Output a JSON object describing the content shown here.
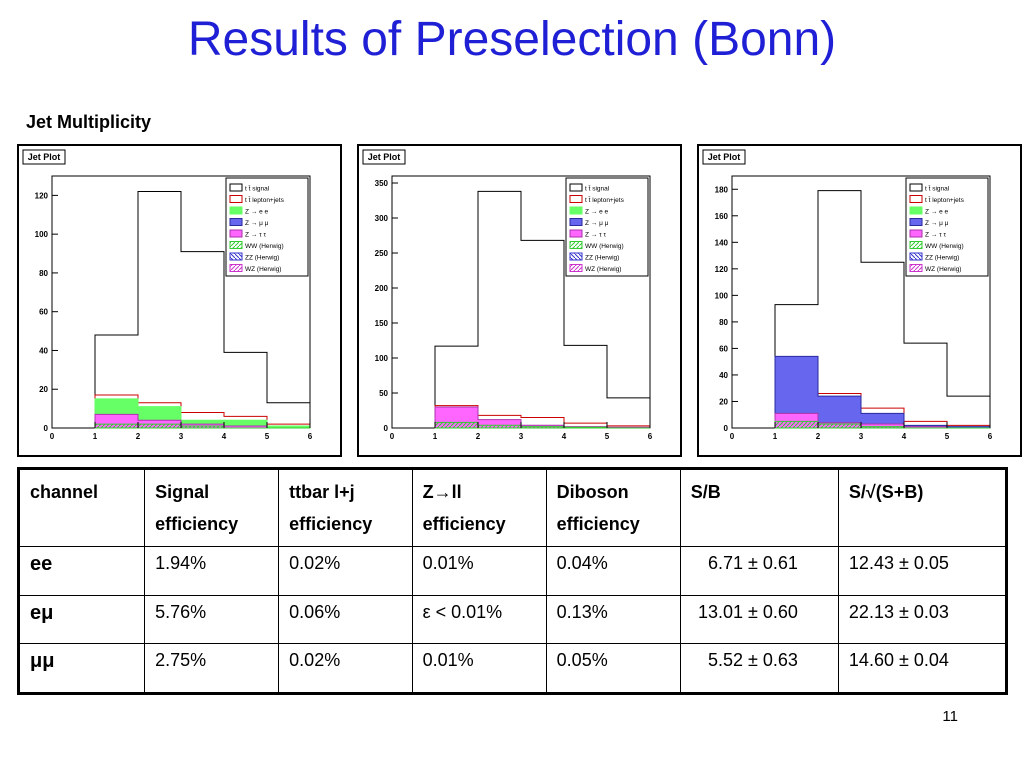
{
  "title": "Results of Preselection (Bonn)",
  "subtitle": "Jet Multiplicity",
  "page_number": "11",
  "colors": {
    "title": "#1f1fd6",
    "signal": "#000000",
    "lepton_jets": "#cc0000",
    "z_ee": "#66ff66",
    "z_mumu": "#6666ee",
    "z_tautau": "#ff66ff",
    "ww": "#33cc33",
    "zz": "#3333cc",
    "wz": "#cc33cc"
  },
  "chart_data": [
    {
      "type": "bar",
      "title": "Jet Plot",
      "x_edges": [
        1,
        2,
        3,
        4,
        5,
        6
      ],
      "xlim": [
        0,
        6
      ],
      "ylim": [
        0,
        130
      ],
      "yticks": [
        0,
        20,
        40,
        60,
        80,
        100,
        120
      ],
      "xticks": [
        0,
        1,
        2,
        3,
        4,
        5,
        6
      ],
      "legend_position": "top-right",
      "series": [
        {
          "name": "t t̄ signal",
          "values": [
            48,
            122,
            91,
            39,
            13
          ]
        },
        {
          "name": "t t̄ lepton+jets",
          "values": [
            17,
            13,
            8,
            6,
            2
          ]
        },
        {
          "name": "Z → e e",
          "values": [
            15,
            11,
            4,
            4,
            1
          ]
        },
        {
          "name": "Z → μ μ",
          "values": [
            0,
            0,
            0,
            0,
            0
          ]
        },
        {
          "name": "Z → τ τ",
          "values": [
            7,
            4,
            2,
            1,
            0
          ]
        },
        {
          "name": "WW (Herwig)",
          "values": [
            2,
            2,
            1,
            0,
            0
          ]
        },
        {
          "name": "ZZ (Herwig)",
          "values": [
            0,
            0,
            0,
            0,
            0
          ]
        },
        {
          "name": "WZ (Herwig)",
          "values": [
            0,
            0,
            0,
            0,
            0
          ]
        }
      ]
    },
    {
      "type": "bar",
      "title": "Jet Plot",
      "x_edges": [
        1,
        2,
        3,
        4,
        5,
        6
      ],
      "xlim": [
        0,
        6
      ],
      "ylim": [
        0,
        360
      ],
      "yticks": [
        0,
        50,
        100,
        150,
        200,
        250,
        300,
        350
      ],
      "xticks": [
        0,
        1,
        2,
        3,
        4,
        5,
        6
      ],
      "legend_position": "top-right",
      "series": [
        {
          "name": "t t̄ signal",
          "values": [
            117,
            338,
            268,
            118,
            43
          ]
        },
        {
          "name": "t t̄ lepton+jets",
          "values": [
            32,
            18,
            15,
            7,
            3
          ]
        },
        {
          "name": "Z → e e",
          "values": [
            0,
            0,
            0,
            0,
            0
          ]
        },
        {
          "name": "Z → μ μ",
          "values": [
            0,
            0,
            0,
            0,
            0
          ]
        },
        {
          "name": "Z → τ τ",
          "values": [
            30,
            12,
            4,
            2,
            1
          ]
        },
        {
          "name": "WW (Herwig)",
          "values": [
            8,
            4,
            2,
            1,
            0
          ]
        },
        {
          "name": "ZZ (Herwig)",
          "values": [
            0,
            0,
            0,
            0,
            0
          ]
        },
        {
          "name": "WZ (Herwig)",
          "values": [
            0,
            0,
            0,
            0,
            0
          ]
        }
      ]
    },
    {
      "type": "bar",
      "title": "Jet Plot",
      "x_edges": [
        1,
        2,
        3,
        4,
        5,
        6
      ],
      "xlim": [
        0,
        6
      ],
      "ylim": [
        0,
        190
      ],
      "yticks": [
        0,
        20,
        40,
        60,
        80,
        100,
        120,
        140,
        160,
        180
      ],
      "xticks": [
        0,
        1,
        2,
        3,
        4,
        5,
        6
      ],
      "legend_position": "top-right",
      "series": [
        {
          "name": "t t̄ signal",
          "values": [
            93,
            179,
            125,
            64,
            24
          ]
        },
        {
          "name": "t t̄ lepton+jets",
          "values": [
            12,
            26,
            15,
            5,
            2
          ]
        },
        {
          "name": "Z → e e",
          "values": [
            0,
            0,
            0,
            0,
            0
          ]
        },
        {
          "name": "Z → μ μ",
          "values": [
            54,
            24,
            11,
            2,
            1
          ]
        },
        {
          "name": "Z → τ τ",
          "values": [
            11,
            4,
            3,
            1,
            0
          ]
        },
        {
          "name": "WW (Herwig)",
          "values": [
            5,
            3,
            1,
            0,
            0
          ]
        },
        {
          "name": "ZZ (Herwig)",
          "values": [
            0,
            0,
            0,
            0,
            0
          ]
        },
        {
          "name": "WZ (Herwig)",
          "values": [
            0,
            0,
            0,
            0,
            0
          ]
        }
      ]
    }
  ],
  "table": {
    "headers": [
      [
        "channel"
      ],
      [
        "Signal",
        "efficiency"
      ],
      [
        "ttbar l+j",
        "efficiency"
      ],
      [
        "Z→ll",
        "efficiency"
      ],
      [
        "Diboson",
        "efficiency"
      ],
      [
        "S/B"
      ],
      [
        "S/√(S+B)"
      ]
    ],
    "rows": [
      {
        "channel": "ee",
        "cells": [
          "1.94%",
          "0.02%",
          "0.01%",
          "0.04%",
          "6.71 ± 0.61",
          "12.43 ± 0.05"
        ]
      },
      {
        "channel": "eμ",
        "cells": [
          "5.76%",
          "0.06%",
          "ε < 0.01%",
          "0.13%",
          "13.01 ± 0.60",
          "22.13 ± 0.03"
        ]
      },
      {
        "channel": "μμ",
        "cells": [
          "2.75%",
          "0.02%",
          "0.01%",
          "0.05%",
          "5.52 ± 0.63",
          "14.60 ± 0.04"
        ]
      }
    ]
  }
}
